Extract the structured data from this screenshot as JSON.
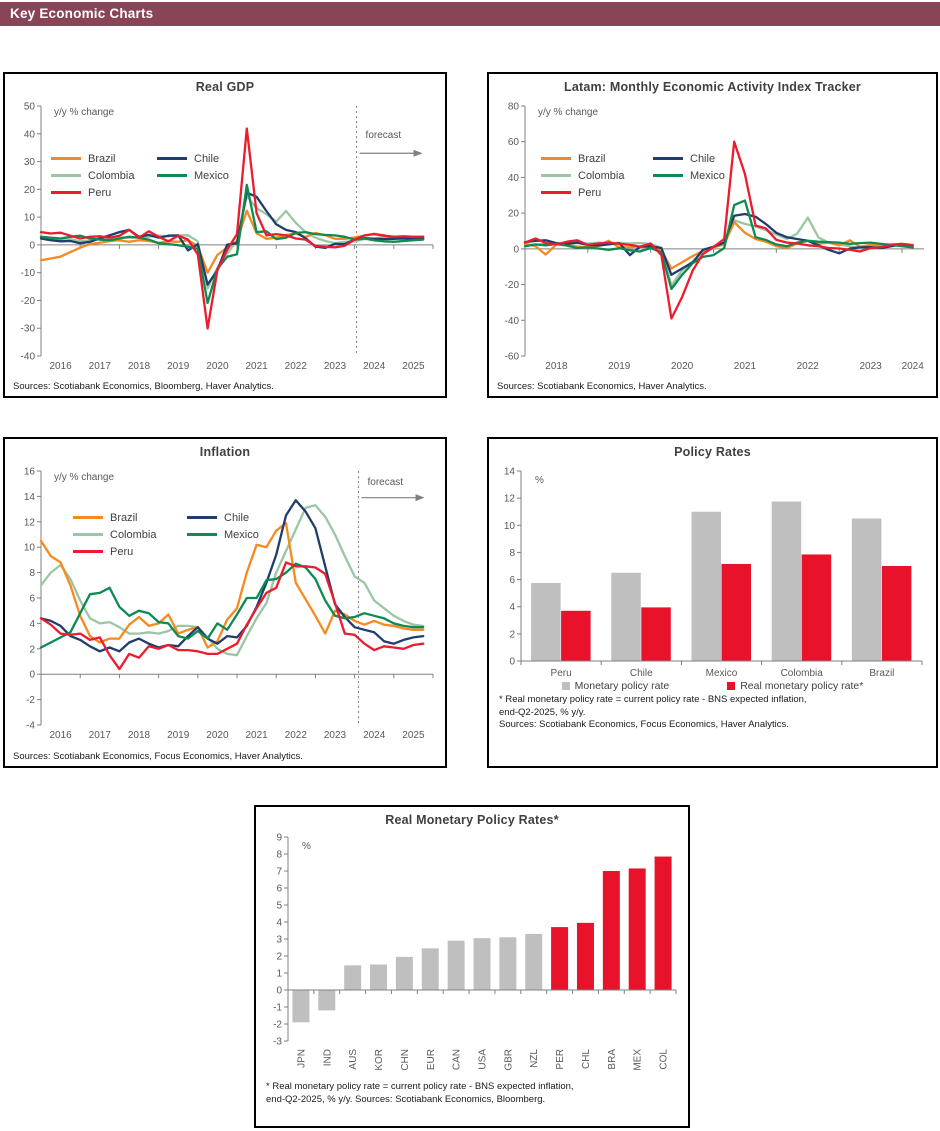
{
  "page": {
    "header_title": "Key Economic Charts"
  },
  "colors": {
    "header_bg": "#8A4458",
    "axis": "#808080",
    "tick_label": "#595959",
    "title_text": "#404040",
    "bar_gray": "#BFBFBF",
    "bar_red": "#E8132B"
  },
  "chart_data": [
    {
      "id": "real_gdp",
      "type": "line",
      "title": "Real GDP",
      "unit_label": "y/y % change",
      "sources": "Sources: Scotiabank Economics, Bloomberg, Haver Analytics.",
      "x_range": [
        2016,
        2026
      ],
      "x_ticks": [
        2016,
        2017,
        2018,
        2019,
        2020,
        2021,
        2022,
        2023,
        2024,
        2025
      ],
      "y_range": [
        -40,
        50
      ],
      "y_step": 10,
      "legend_position": "upper-left",
      "grid": false,
      "forecast": {
        "label": "forecast",
        "x": 2024.05,
        "label_y": 38.5,
        "arrow_y": 33
      },
      "draw_order": [
        2,
        0,
        1,
        3,
        4
      ],
      "x": [
        2016,
        2016.25,
        2016.5,
        2016.75,
        2017,
        2017.25,
        2017.5,
        2017.75,
        2018,
        2018.25,
        2018.5,
        2018.75,
        2019,
        2019.25,
        2019.5,
        2019.75,
        2020,
        2020.25,
        2020.5,
        2020.75,
        2021,
        2021.25,
        2021.5,
        2021.75,
        2022,
        2022.25,
        2022.5,
        2022.75,
        2023,
        2023.25,
        2023.5,
        2023.75,
        2024,
        2024.25,
        2024.5,
        2024.75,
        2025,
        2025.25,
        2025.5,
        2025.75
      ],
      "series": [
        {
          "name": "Brazil",
          "color": "#F6891F",
          "values": [
            -5.5,
            -4.9,
            -4.2,
            -2.6,
            -1.0,
            0.3,
            0.8,
            1.4,
            1.6,
            1.1,
            1.7,
            1.4,
            0.7,
            1.3,
            1.1,
            1.7,
            -0.4,
            -10.0,
            -3.6,
            -0.9,
            1.4,
            12.3,
            4.2,
            2.2,
            2.6,
            3.6,
            4.1,
            2.8,
            4.3,
            3.5,
            2.2,
            2.2,
            2.7,
            3.3,
            4.0,
            3.5,
            2.4,
            2.1,
            2.2,
            2.3
          ]
        },
        {
          "name": "Chile",
          "color": "#1F3D6D",
          "values": [
            2.3,
            1.7,
            1.3,
            1.4,
            0.6,
            1.1,
            2.3,
            3.4,
            4.6,
            5.4,
            2.9,
            3.6,
            2.6,
            3.3,
            3.4,
            -2.0,
            0.3,
            -14.3,
            -9.1,
            0.1,
            0.6,
            18.8,
            17.3,
            12.2,
            7.4,
            5.4,
            4.6,
            2.4,
            -0.6,
            -1.1,
            0.4,
            0.3,
            1.9,
            2.4,
            2.2,
            2.1,
            2.2,
            2.4,
            2.3,
            2.4
          ]
        },
        {
          "name": "Colombia",
          "color": "#9BC6A3",
          "values": [
            2.6,
            2.4,
            1.9,
            2.1,
            1.3,
            1.6,
            2.1,
            1.9,
            2.7,
            2.6,
            2.8,
            2.9,
            3.3,
            3.1,
            3.4,
            3.5,
            1.3,
            -15.7,
            -8.3,
            -3.1,
            1.6,
            17.6,
            13.2,
            11.0,
            8.4,
            12.2,
            7.9,
            4.6,
            2.6,
            1.4,
            0.6,
            1.1,
            1.3,
            2.1,
            2.3,
            2.9,
            2.6,
            2.6,
            2.7,
            2.6
          ]
        },
        {
          "name": "Mexico",
          "color": "#0E8A52",
          "values": [
            2.9,
            2.6,
            2.3,
            2.9,
            3.3,
            2.3,
            1.9,
            1.6,
            2.3,
            2.9,
            2.6,
            1.9,
            0.6,
            0.3,
            -0.1,
            -0.7,
            -1.4,
            -20.9,
            -8.6,
            -4.3,
            -3.4,
            21.6,
            4.6,
            4.9,
            2.1,
            2.6,
            4.3,
            4.6,
            3.9,
            3.6,
            3.4,
            2.9,
            1.9,
            2.3,
            1.6,
            1.3,
            1.1,
            1.4,
            1.7,
            1.9
          ]
        },
        {
          "name": "Peru",
          "color": "#EB1C2D",
          "values": [
            4.6,
            4.1,
            4.4,
            3.3,
            2.3,
            2.9,
            3.1,
            2.6,
            3.3,
            5.4,
            2.6,
            4.9,
            2.9,
            1.3,
            3.3,
            1.9,
            -3.4,
            -30.1,
            -9.1,
            -1.7,
            3.9,
            41.9,
            11.4,
            3.4,
            3.9,
            3.4,
            2.3,
            1.9,
            -0.4,
            -0.7,
            -0.9,
            -0.3,
            1.9,
            3.4,
            3.9,
            3.3,
            2.9,
            3.1,
            2.9,
            3.0
          ]
        }
      ]
    },
    {
      "id": "latam_meai",
      "type": "line",
      "title": "Latam: Monthly Economic Activity Index Tracker",
      "unit_label": "y/y % change",
      "sources": "Sources: Scotiabank Economics, Haver Analytics.",
      "x_range": [
        2018,
        2024.35
      ],
      "x_ticks": [
        2018,
        2019,
        2020,
        2021,
        2022,
        2023,
        2024
      ],
      "y_range": [
        -60,
        80
      ],
      "y_step": 20,
      "legend_position": "upper-left",
      "grid": false,
      "draw_order": [
        2,
        0,
        1,
        3,
        4
      ],
      "x": [
        2018,
        2018.17,
        2018.33,
        2018.5,
        2018.67,
        2018.83,
        2019,
        2019.17,
        2019.33,
        2019.5,
        2019.67,
        2019.83,
        2020,
        2020.17,
        2020.33,
        2020.5,
        2020.67,
        2020.83,
        2021,
        2021.17,
        2021.33,
        2021.5,
        2021.67,
        2021.83,
        2022,
        2022.17,
        2022.33,
        2022.5,
        2022.67,
        2022.83,
        2023,
        2023.17,
        2023.33,
        2023.5,
        2023.67,
        2023.83,
        2024,
        2024.17
      ],
      "series": [
        {
          "name": "Brazil",
          "color": "#F6891F",
          "values": [
            2.8,
            1.5,
            -3.2,
            2.5,
            2.0,
            1.2,
            1.0,
            1.8,
            4.5,
            0.8,
            1.0,
            1.4,
            0.6,
            -0.8,
            -11.0,
            -7.5,
            -4.0,
            -1.2,
            0.8,
            2.5,
            15.0,
            9.0,
            5.5,
            4.0,
            1.5,
            0.5,
            3.0,
            4.5,
            2.8,
            3.5,
            2.0,
            4.8,
            1.2,
            2.2,
            1.8,
            2.5,
            2.8,
            2.2
          ]
        },
        {
          "name": "Chile",
          "color": "#1F3D6D",
          "values": [
            3.8,
            4.5,
            4.8,
            3.2,
            2.8,
            3.5,
            2.2,
            1.8,
            2.5,
            3.2,
            -3.5,
            1.2,
            1.5,
            0.5,
            -14.5,
            -11.0,
            -7.5,
            -0.5,
            1.2,
            3.5,
            18.5,
            19.5,
            18.0,
            14.0,
            9.0,
            6.5,
            5.5,
            4.5,
            2.0,
            -0.5,
            -2.5,
            0.2,
            0.8,
            1.0,
            0.5,
            1.5,
            2.5,
            0.8
          ]
        },
        {
          "name": "Colombia",
          "color": "#9BC6A3",
          "values": [
            2.5,
            2.2,
            2.8,
            3.0,
            2.6,
            3.2,
            3.0,
            3.5,
            3.2,
            3.4,
            3.0,
            3.3,
            2.8,
            0.5,
            -20.5,
            -12.0,
            -7.0,
            -2.5,
            0.5,
            3.0,
            16.0,
            14.0,
            12.5,
            10.5,
            8.0,
            5.5,
            8.5,
            17.5,
            6.5,
            3.5,
            2.5,
            1.5,
            0.5,
            1.0,
            1.8,
            2.0,
            2.2,
            1.5
          ]
        },
        {
          "name": "Mexico",
          "color": "#0E8A52",
          "values": [
            1.5,
            2.5,
            2.0,
            2.8,
            1.8,
            0.5,
            0.8,
            0.2,
            -0.5,
            0.3,
            -0.8,
            -1.5,
            0.5,
            -2.0,
            -22.5,
            -14.5,
            -8.0,
            -4.5,
            -3.5,
            0.5,
            24.5,
            27.0,
            6.5,
            5.0,
            2.5,
            1.5,
            3.5,
            4.5,
            4.0,
            3.8,
            3.5,
            2.8,
            3.2,
            3.5,
            2.8,
            2.2,
            1.5,
            0.8
          ]
        },
        {
          "name": "Peru",
          "color": "#EB1C2D",
          "values": [
            3.5,
            5.8,
            3.2,
            2.5,
            4.0,
            4.8,
            2.2,
            3.0,
            3.5,
            2.8,
            2.2,
            1.2,
            3.0,
            -3.5,
            -39.0,
            -27.0,
            -12.0,
            -3.0,
            1.0,
            5.5,
            60.0,
            42.0,
            13.0,
            11.5,
            5.0,
            3.5,
            3.0,
            2.0,
            1.5,
            0.5,
            0.2,
            -0.5,
            -1.5,
            0.5,
            1.0,
            2.2,
            2.8,
            2.0
          ]
        }
      ]
    },
    {
      "id": "inflation",
      "type": "line",
      "title": "Inflation",
      "unit_label": "y/y % change",
      "sources": "Sources: Scotiabank Economics, Focus Economics, Haver Analytics.",
      "x_range": [
        2016,
        2026
      ],
      "x_ticks": [
        2016,
        2017,
        2018,
        2019,
        2020,
        2021,
        2022,
        2023,
        2024,
        2025
      ],
      "y_range": [
        -4,
        16
      ],
      "y_step": 2,
      "legend_position": "upper-left",
      "grid": false,
      "forecast": {
        "label": "forecast",
        "x": 2024.1,
        "label_y": 14.9,
        "arrow_y": 13.9
      },
      "draw_order": [
        2,
        0,
        1,
        3,
        4
      ],
      "x": [
        2016,
        2016.25,
        2016.5,
        2016.75,
        2017,
        2017.25,
        2017.5,
        2017.75,
        2018,
        2018.25,
        2018.5,
        2018.75,
        2019,
        2019.25,
        2019.5,
        2019.75,
        2020,
        2020.25,
        2020.5,
        2020.75,
        2021,
        2021.25,
        2021.5,
        2021.75,
        2022,
        2022.25,
        2022.5,
        2022.75,
        2023,
        2023.25,
        2023.5,
        2023.75,
        2024,
        2024.25,
        2024.5,
        2024.75,
        2025,
        2025.25,
        2025.5,
        2025.75
      ],
      "series": [
        {
          "name": "Brazil",
          "color": "#F6891F",
          "values": [
            10.5,
            9.3,
            8.8,
            7.0,
            4.6,
            3.0,
            2.5,
            2.8,
            2.8,
            3.9,
            4.5,
            3.8,
            4.0,
            4.7,
            3.2,
            3.5,
            3.7,
            2.1,
            2.6,
            4.3,
            5.2,
            8.0,
            10.2,
            10.0,
            11.3,
            11.9,
            7.2,
            5.9,
            4.6,
            3.2,
            5.0,
            4.7,
            4.2,
            3.9,
            4.2,
            3.9,
            3.8,
            3.6,
            3.5,
            3.5
          ]
        },
        {
          "name": "Chile",
          "color": "#1F3D6D",
          "values": [
            4.4,
            4.2,
            3.8,
            3.0,
            2.7,
            2.2,
            1.8,
            2.1,
            1.8,
            2.5,
            2.8,
            2.4,
            2.1,
            2.3,
            2.2,
            3.0,
            3.7,
            2.8,
            2.4,
            3.0,
            2.9,
            3.8,
            5.3,
            7.2,
            9.4,
            12.5,
            13.7,
            12.8,
            11.5,
            8.5,
            5.5,
            4.5,
            3.7,
            3.5,
            3.3,
            2.6,
            2.4,
            2.7,
            2.9,
            3.0
          ]
        },
        {
          "name": "Colombia",
          "color": "#9BC6A3",
          "values": [
            7.0,
            8.0,
            8.6,
            7.5,
            5.8,
            4.4,
            4.0,
            4.1,
            3.7,
            3.2,
            3.2,
            3.3,
            3.2,
            3.4,
            3.8,
            3.8,
            3.7,
            2.9,
            2.0,
            1.6,
            1.5,
            3.0,
            4.4,
            5.6,
            8.0,
            9.7,
            11.4,
            13.1,
            13.3,
            12.4,
            11.0,
            9.3,
            7.7,
            7.2,
            5.8,
            5.2,
            4.6,
            4.2,
            3.9,
            3.8
          ]
        },
        {
          "name": "Mexico",
          "color": "#0E8A52",
          "values": [
            2.1,
            2.5,
            2.9,
            3.3,
            4.8,
            6.3,
            6.4,
            6.8,
            5.3,
            4.6,
            5.0,
            4.8,
            4.1,
            4.0,
            3.0,
            2.8,
            3.4,
            2.8,
            4.0,
            3.5,
            4.7,
            6.0,
            6.0,
            7.4,
            7.5,
            8.0,
            8.7,
            8.4,
            7.5,
            5.8,
            4.6,
            4.4,
            4.5,
            4.8,
            4.6,
            4.4,
            4.0,
            3.8,
            3.7,
            3.7
          ]
        },
        {
          "name": "Peru",
          "color": "#EB1C2D",
          "values": [
            4.4,
            3.9,
            3.2,
            3.1,
            3.2,
            2.7,
            2.9,
            1.5,
            0.4,
            1.6,
            1.3,
            2.2,
            2.0,
            2.3,
            1.9,
            1.9,
            1.8,
            1.6,
            1.6,
            2.0,
            2.4,
            3.9,
            5.2,
            6.4,
            6.8,
            8.8,
            8.5,
            8.5,
            8.4,
            7.9,
            5.6,
            3.2,
            3.1,
            2.4,
            1.9,
            2.2,
            2.1,
            2.0,
            2.3,
            2.4
          ]
        }
      ]
    },
    {
      "id": "policy_rates",
      "type": "bar",
      "title": "Policy Rates",
      "unit_label": "%",
      "y_range": [
        0,
        14
      ],
      "y_step": 2,
      "grid": false,
      "legend_position": "bottom",
      "categories": [
        "Peru",
        "Chile",
        "Mexico",
        "Colombia",
        "Brazil"
      ],
      "series": [
        {
          "name": "Monetary policy rate",
          "color": "#BFBFBF",
          "values": [
            5.75,
            6.5,
            11.0,
            11.75,
            10.5
          ]
        },
        {
          "name": "Real monetary policy rate*",
          "color": "#E8132B",
          "values": [
            3.7,
            3.95,
            7.15,
            7.85,
            7.0
          ]
        }
      ],
      "footnote": [
        "* Real monetary policy rate = current policy rate - BNS expected inflation,",
        "end-Q2-2025, % y/y.",
        "Sources: Scotiabank Economics, Focus Economics, Haver Analytics."
      ]
    },
    {
      "id": "real_rates",
      "type": "bar",
      "title": "Real Monetary Policy Rates*",
      "unit_label": "%",
      "y_range": [
        -3,
        9
      ],
      "y_step": 1,
      "grid": false,
      "x_label_rotation": -90,
      "categories": [
        "JPN",
        "IND",
        "AUS",
        "KOR",
        "CHN",
        "EUR",
        "CAN",
        "USA",
        "GBR",
        "NZL",
        "PER",
        "CHL",
        "BRA",
        "MEX",
        "COL"
      ],
      "values": [
        -1.9,
        -1.2,
        1.45,
        1.5,
        1.95,
        2.45,
        2.9,
        3.05,
        3.1,
        3.3,
        3.7,
        3.95,
        7.0,
        7.15,
        7.85
      ],
      "bar_colors": [
        "#BFBFBF",
        "#BFBFBF",
        "#BFBFBF",
        "#BFBFBF",
        "#BFBFBF",
        "#BFBFBF",
        "#BFBFBF",
        "#BFBFBF",
        "#BFBFBF",
        "#BFBFBF",
        "#E8132B",
        "#E8132B",
        "#E8132B",
        "#E8132B",
        "#E8132B"
      ],
      "footnote": [
        "* Real monetary policy rate = current policy rate - BNS expected inflation,",
        "end-Q2-2025, % y/y. Sources: Scotiabank Economics, Bloomberg."
      ]
    }
  ]
}
